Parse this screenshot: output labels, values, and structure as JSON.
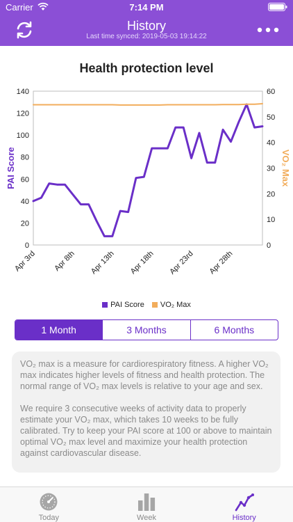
{
  "status_bar": {
    "carrier": "Carrier",
    "time": "7:14 PM"
  },
  "header": {
    "title": "History",
    "subtitle": "Last time synced: 2019-05-03 19:14:22",
    "sync_icon": "sync-icon",
    "more_icon": "more-icon",
    "color": "#8b4fd6"
  },
  "chart_title": "Health protection level",
  "chart_data": {
    "type": "line",
    "x": [
      "Apr 3rd",
      "Apr 4th",
      "Apr 5th",
      "Apr 6th",
      "Apr 7th",
      "Apr 8th",
      "Apr 9th",
      "Apr 10th",
      "Apr 11th",
      "Apr 12th",
      "Apr 13th",
      "Apr 14th",
      "Apr 15th",
      "Apr 16th",
      "Apr 17th",
      "Apr 18th",
      "Apr 19th",
      "Apr 20th",
      "Apr 21st",
      "Apr 22nd",
      "Apr 23rd",
      "Apr 24th",
      "Apr 25th",
      "Apr 26th",
      "Apr 27th",
      "Apr 28th",
      "Apr 29th",
      "Apr 30th",
      "May 1st",
      "May 2nd"
    ],
    "x_tick_labels": [
      "Apr 3rd",
      "Apr 8th",
      "Apr 13th",
      "Apr 18th",
      "Apr 23rd",
      "Apr 28th"
    ],
    "series": [
      {
        "name": "PAI Score",
        "axis": "left",
        "color": "#6a2fc8",
        "values": [
          40,
          43,
          56,
          55,
          55,
          46,
          37,
          37,
          22,
          8,
          8,
          31,
          30,
          61,
          62,
          88,
          88,
          88,
          107,
          107,
          79,
          102,
          75,
          75,
          105,
          94,
          112,
          128,
          107,
          108
        ]
      },
      {
        "name": "VO₂ Max",
        "axis": "right",
        "color": "#f2ad5c",
        "values": [
          54.7,
          54.7,
          54.7,
          54.7,
          54.7,
          54.7,
          54.7,
          54.7,
          54.7,
          54.7,
          54.7,
          54.6,
          54.6,
          54.6,
          54.6,
          54.6,
          54.6,
          54.7,
          54.7,
          54.7,
          54.7,
          54.7,
          54.7,
          54.7,
          54.8,
          54.8,
          54.8,
          54.9,
          54.9,
          55.1
        ]
      }
    ],
    "y_left": {
      "label": "PAI Score",
      "ticks": [
        0,
        20,
        40,
        60,
        80,
        100,
        120,
        140
      ],
      "range": [
        0,
        140
      ]
    },
    "y_right": {
      "label": "VO₂ Max",
      "ticks": [
        0,
        10,
        20,
        30,
        40,
        50,
        60
      ],
      "range": [
        0,
        60
      ]
    },
    "grid": false,
    "legend_position": "bottom"
  },
  "legend": {
    "pai_label": "PAI Score",
    "vo2_label": "VO₂ Max"
  },
  "segments": {
    "one_month": "1 Month",
    "three_months": "3 Months",
    "six_months": "6 Months",
    "selected": "1 Month"
  },
  "info": {
    "paragraph1": "VO₂ max is a measure for cardiorespiratory fitness. A higher VO₂ max indicates higher levels of fitness and health protection. The normal range of VO₂ max levels is relative to your age and sex.",
    "paragraph2": "We require 3 consecutive weeks of activity data to properly estimate your VO₂ max, which takes 10 weeks to be fully calibrated. Try to keep your PAI score at 100 or above to maintain optimal VO₂ max level and maximize your health protection against cardiovascular disease."
  },
  "tabs": [
    {
      "label": "Today",
      "icon": "speedometer-icon"
    },
    {
      "label": "Week",
      "icon": "bar-chart-icon"
    },
    {
      "label": "History",
      "icon": "trend-line-icon",
      "active": true
    }
  ]
}
